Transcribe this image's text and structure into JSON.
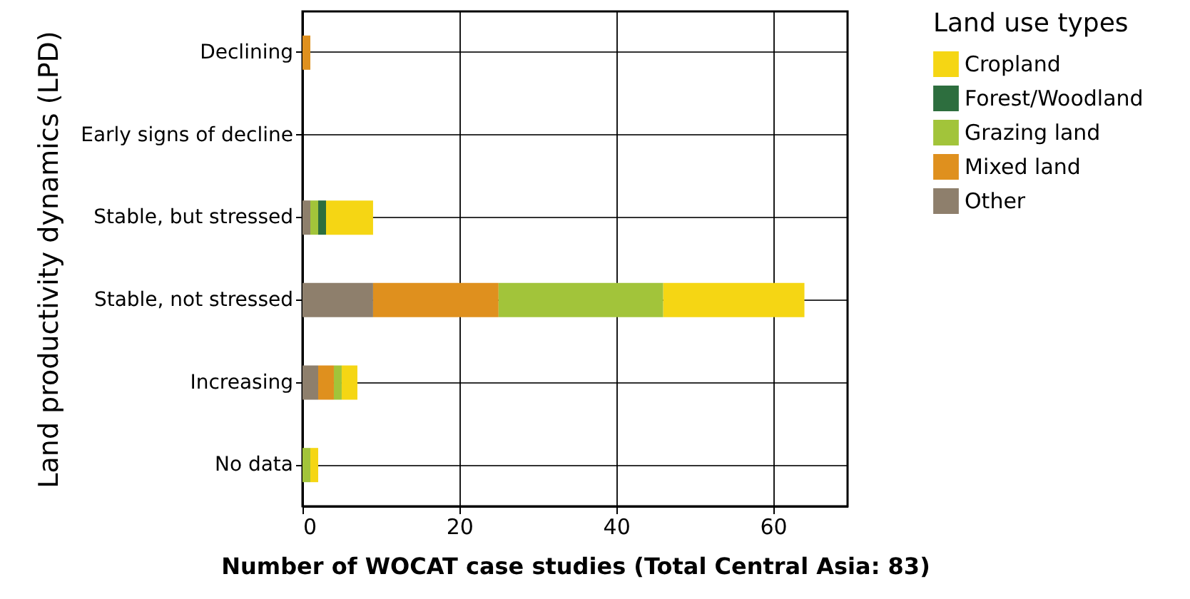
{
  "chart_data": {
    "type": "bar",
    "orientation": "horizontal",
    "stacked": true,
    "xlabel": "Number of WOCAT case studies (Total Central Asia: 83)",
    "ylabel": "Land productivity dynamics (LPD)",
    "legend_title": "Land use types",
    "categories": [
      "Declining",
      "Early signs of decline",
      "Stable, but stressed",
      "Stable, not stressed",
      "Increasing",
      "No data"
    ],
    "series": [
      {
        "name": "Other",
        "color": "#8e7f6c",
        "values": [
          0,
          0,
          1,
          9,
          2,
          0
        ]
      },
      {
        "name": "Mixed land",
        "color": "#df901e",
        "values": [
          1,
          0,
          0,
          16,
          2,
          0
        ]
      },
      {
        "name": "Grazing land",
        "color": "#a2c43a",
        "values": [
          0,
          0,
          1,
          21,
          1,
          1
        ]
      },
      {
        "name": "Forest/Woodland",
        "color": "#2d6e3e",
        "values": [
          0,
          0,
          1,
          0,
          0,
          0
        ]
      },
      {
        "name": "Cropland",
        "color": "#f5d614",
        "values": [
          0,
          0,
          6,
          18,
          2,
          1
        ]
      }
    ],
    "xlim": [
      0,
      69.5
    ],
    "xticks": [
      0,
      20,
      40,
      60
    ],
    "grid": true,
    "legend": "right"
  }
}
